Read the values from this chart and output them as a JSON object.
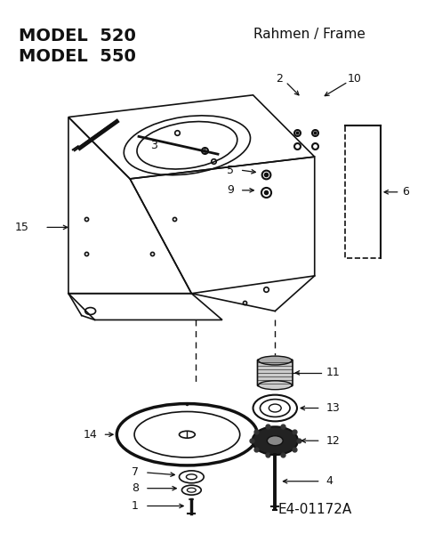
{
  "title_line1": "MODEL  520",
  "title_line2": "MODEL  550",
  "subtitle": "Rahmen / Frame",
  "part_code": "E4-01172A",
  "bg_color": "#ffffff",
  "fg_color": "#111111"
}
